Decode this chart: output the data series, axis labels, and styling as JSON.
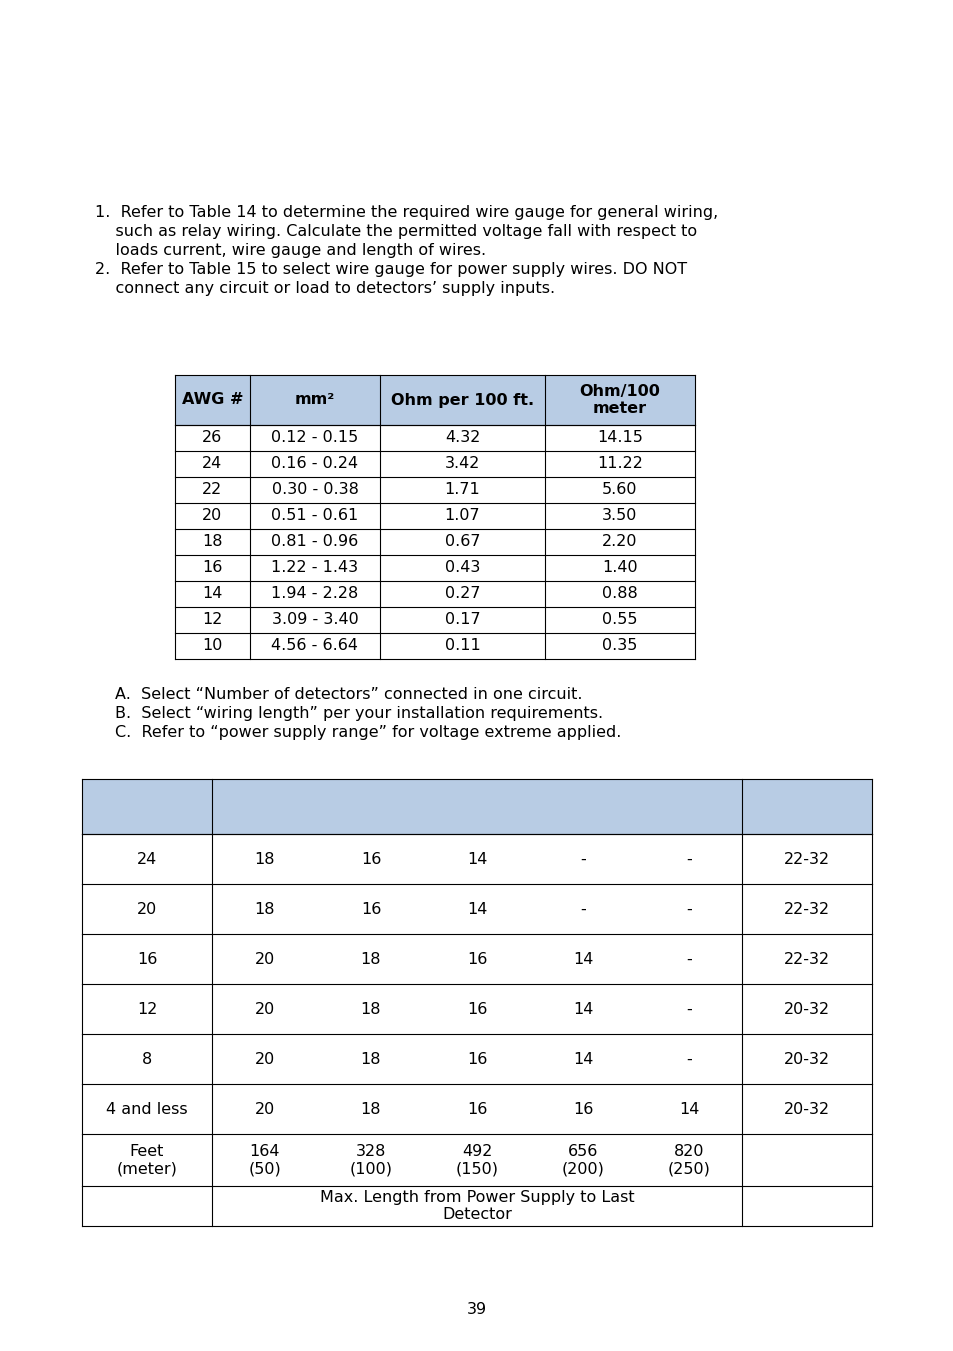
{
  "bg_color": "#ffffff",
  "text_color": "#000000",
  "header_bg": "#b8cce4",
  "page_number": "39",
  "table1_headers": [
    "AWG #",
    "mm²",
    "Ohm per 100 ft.",
    "Ohm/100\nmeter"
  ],
  "table1_rows": [
    [
      "26",
      "0.12 - 0.15",
      "4.32",
      "14.15"
    ],
    [
      "24",
      "0.16 - 0.24",
      "3.42",
      "11.22"
    ],
    [
      "22",
      "0.30 - 0.38",
      "1.71",
      "5.60"
    ],
    [
      "20",
      "0.51 - 0.61",
      "1.07",
      "3.50"
    ],
    [
      "18",
      "0.81 - 0.96",
      "0.67",
      "2.20"
    ],
    [
      "16",
      "1.22 - 1.43",
      "0.43",
      "1.40"
    ],
    [
      "14",
      "1.94 - 2.28",
      "0.27",
      "0.88"
    ],
    [
      "12",
      "3.09 - 3.40",
      "0.17",
      "0.55"
    ],
    [
      "10",
      "4.56 - 6.64",
      "0.11",
      "0.35"
    ]
  ],
  "table2_rows": [
    [
      "24",
      "18",
      "16",
      "14",
      "-",
      "-",
      "22-32"
    ],
    [
      "20",
      "18",
      "16",
      "14",
      "-",
      "-",
      "22-32"
    ],
    [
      "16",
      "20",
      "18",
      "16",
      "14",
      "-",
      "22-32"
    ],
    [
      "12",
      "20",
      "18",
      "16",
      "14",
      "-",
      "20-32"
    ],
    [
      "8",
      "20",
      "18",
      "16",
      "14",
      "-",
      "20-32"
    ],
    [
      "4 and less",
      "20",
      "18",
      "16",
      "16",
      "14",
      "20-32"
    ]
  ],
  "table2_footer1": [
    "Feet\n(meter)",
    "164\n(50)",
    "328\n(100)",
    "492\n(150)",
    "656\n(200)",
    "820\n(250)",
    ""
  ],
  "intro_line1a": "1.  Refer to Table 14 to determine the required wire gauge for general wiring,",
  "intro_line1b": "    such as relay wiring. Calculate the permitted voltage fall with respect to",
  "intro_line1c": "    loads current, wire gauge and length of wires.",
  "intro_line2a": "2.  Refer to Table 15 to select wire gauge for power supply wires. DO NOT",
  "intro_line2b": "    connect any circuit or load to detectors’ supply inputs.",
  "abc_a": "A.  Select “Number of detectors” connected in one circuit.",
  "abc_b": "B.  Select “wiring length” per your installation requirements.",
  "abc_c": "C.  Refer to “power supply range” for voltage extreme applied.",
  "footer_label": "Max. Length from Power Supply to Last\nDetector"
}
